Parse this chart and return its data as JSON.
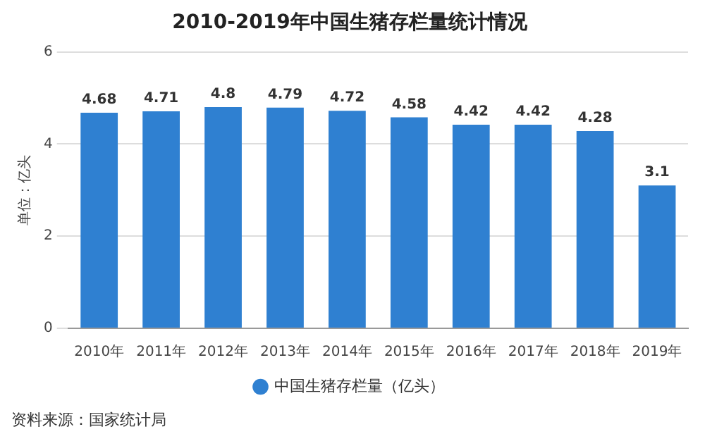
{
  "chart_data": {
    "type": "bar",
    "title": "2010-2019年中国生猪存栏量统计情况",
    "ylabel": "单位：亿头",
    "categories": [
      "2010年",
      "2011年",
      "2012年",
      "2013年",
      "2014年",
      "2015年",
      "2016年",
      "2017年",
      "2018年",
      "2019年"
    ],
    "series": [
      {
        "name": "中国生猪存栏量（亿头）",
        "color": "#2f80d1",
        "values": [
          4.68,
          4.71,
          4.8,
          4.79,
          4.72,
          4.58,
          4.42,
          4.42,
          4.28,
          3.1
        ]
      }
    ],
    "ylim": [
      0,
      6
    ],
    "yticks": [
      0,
      2,
      4,
      6
    ],
    "grid": "y",
    "legend": "bottom",
    "data_labels": true,
    "annotations": [
      "资料来源：国家统计局"
    ]
  }
}
